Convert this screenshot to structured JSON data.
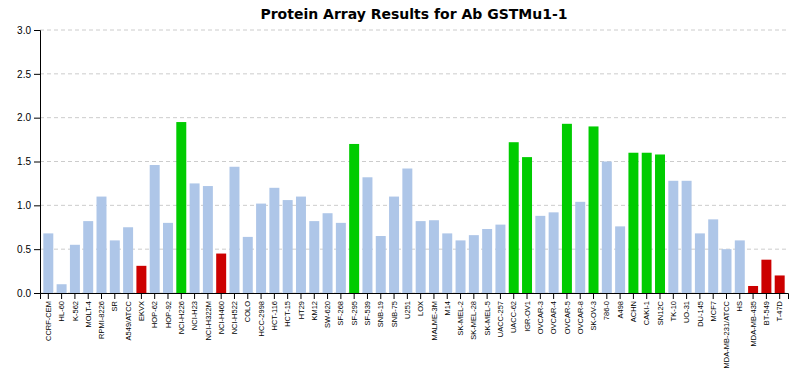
{
  "chart_data": {
    "type": "bar",
    "title": "Protein Array Results for Ab GSTMu1-1",
    "categories": [
      "CCRF-CEM",
      "HL-60",
      "K-562",
      "MOLT-4",
      "RPMI-8226",
      "SR",
      "A549/ATCC",
      "EKVX",
      "HOP-62",
      "HOP-92",
      "NCI-H226",
      "NCI-H23",
      "NCI-H322M",
      "NCI-H460",
      "NCI-H522",
      "COLO",
      "HCC-2998",
      "HCT-116",
      "HCT-15",
      "HT29",
      "KM12",
      "SW-620",
      "SF-268",
      "SF-295",
      "SF-539",
      "SNB-19",
      "SNB-75",
      "U251",
      "LOX",
      "MALME-3M",
      "M14",
      "SK-MEL-2",
      "SK-MEL-28",
      "SK-MEL-5",
      "UACC-257",
      "UACC-62",
      "IGR-OV1",
      "OVCAR-3",
      "OVCAR-4",
      "OVCAR-5",
      "OVCAR-8",
      "SK-OV-3",
      "786-0",
      "A498",
      "ACHN",
      "CAKI-1",
      "SN12C",
      "TK-10",
      "UO-31",
      "DU-145",
      "MCF7",
      "MDA-MB-231/ATCC",
      "HS",
      "MDA-MB-435",
      "BT-549",
      "T-47D"
    ],
    "values": [
      0.68,
      0.1,
      0.55,
      0.82,
      1.1,
      0.6,
      0.75,
      0.31,
      1.46,
      0.8,
      1.95,
      1.25,
      1.22,
      0.45,
      1.44,
      0.64,
      1.02,
      1.2,
      1.06,
      1.1,
      0.82,
      0.91,
      0.8,
      1.7,
      1.32,
      0.65,
      1.1,
      1.42,
      0.82,
      0.83,
      0.68,
      0.6,
      0.66,
      0.73,
      0.78,
      1.72,
      1.55,
      0.88,
      0.92,
      1.93,
      1.04,
      1.9,
      1.5,
      0.76,
      1.6,
      1.6,
      1.58,
      1.28,
      1.28,
      0.68,
      0.84,
      0.5,
      0.6,
      0.08,
      0.38,
      0.2
    ],
    "colors": [
      "#aec6e8",
      "#aec6e8",
      "#aec6e8",
      "#aec6e8",
      "#aec6e8",
      "#aec6e8",
      "#aec6e8",
      "#cc0000",
      "#aec6e8",
      "#aec6e8",
      "#00cc00",
      "#aec6e8",
      "#aec6e8",
      "#cc0000",
      "#aec6e8",
      "#aec6e8",
      "#aec6e8",
      "#aec6e8",
      "#aec6e8",
      "#aec6e8",
      "#aec6e8",
      "#aec6e8",
      "#aec6e8",
      "#00cc00",
      "#aec6e8",
      "#aec6e8",
      "#aec6e8",
      "#aec6e8",
      "#aec6e8",
      "#aec6e8",
      "#aec6e8",
      "#aec6e8",
      "#aec6e8",
      "#aec6e8",
      "#aec6e8",
      "#00cc00",
      "#00cc00",
      "#aec6e8",
      "#aec6e8",
      "#00cc00",
      "#aec6e8",
      "#00cc00",
      "#aec6e8",
      "#aec6e8",
      "#00cc00",
      "#00cc00",
      "#00cc00",
      "#aec6e8",
      "#aec6e8",
      "#aec6e8",
      "#aec6e8",
      "#aec6e8",
      "#aec6e8",
      "#cc0000",
      "#cc0000",
      "#cc0000"
    ],
    "ylim": [
      0,
      3.0
    ],
    "yticks": [
      {
        "value": 0.0,
        "label": "0.0"
      },
      0.5,
      {
        "value": 1.0,
        "label": "1.0"
      },
      1.5,
      {
        "value": 2.0,
        "label": "2.0"
      },
      2.5,
      {
        "value": 3.0,
        "label": "3.0"
      }
    ],
    "grid": true
  }
}
